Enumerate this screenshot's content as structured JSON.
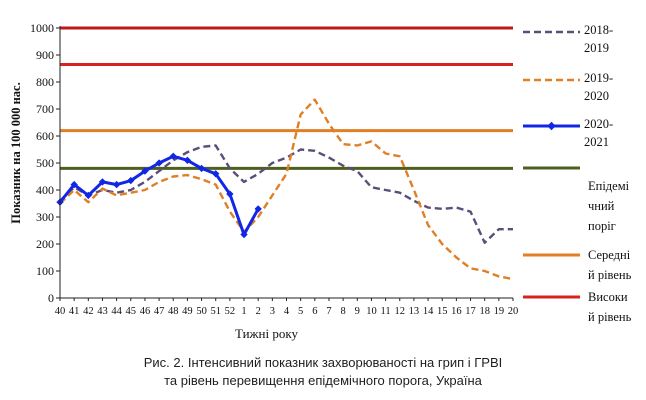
{
  "chart_data": {
    "type": "line",
    "ylabel": "Показник на 100 000 нас.",
    "xlabel": "Тижні року",
    "ylim": [
      0,
      1000
    ],
    "yticks": [
      "0",
      "100",
      "200",
      "300",
      "400",
      "500",
      "600",
      "700",
      "800",
      "900",
      "1000"
    ],
    "x_categories": [
      "40",
      "41",
      "42",
      "43",
      "44",
      "45",
      "46",
      "47",
      "48",
      "49",
      "50",
      "51",
      "52",
      "1",
      "2",
      "3",
      "4",
      "5",
      "6",
      "7",
      "8",
      "9",
      "10",
      "11",
      "12",
      "13",
      "14",
      "15",
      "16",
      "17",
      "18",
      "19",
      "20"
    ],
    "grid": false,
    "legend_position": "right",
    "series": [
      {
        "name": "2018-2019",
        "style": "dashed",
        "color": "#5b4e7a",
        "values": [
          360,
          410,
          380,
          400,
          390,
          400,
          430,
          470,
          510,
          540,
          560,
          565,
          480,
          430,
          460,
          500,
          520,
          550,
          545,
          520,
          490,
          470,
          410,
          400,
          390,
          360,
          335,
          330,
          335,
          320,
          205,
          255,
          255
        ]
      },
      {
        "name": "2019-2020",
        "style": "dashed",
        "color": "#e07f24",
        "values": [
          350,
          400,
          355,
          405,
          380,
          390,
          400,
          430,
          450,
          455,
          440,
          420,
          320,
          245,
          300,
          380,
          460,
          680,
          735,
          645,
          570,
          565,
          580,
          535,
          525,
          400,
          270,
          200,
          150,
          110,
          100,
          80,
          70
        ]
      },
      {
        "name": "2020-2021",
        "style": "solid",
        "color": "#1226e6",
        "values": [
          355,
          420,
          380,
          430,
          420,
          435,
          470,
          500,
          525,
          510,
          480,
          460,
          385,
          235,
          330
        ]
      }
    ],
    "thresholds": [
      {
        "name": "Епідемічний поріг",
        "legend_lines": [
          "Епідемі",
          "чний",
          "поріг"
        ],
        "value": 480,
        "color": "#4e5f1e"
      },
      {
        "name": "Середній рівень",
        "legend_lines": [
          "Середні",
          "й рівень"
        ],
        "value": 620,
        "color": "#e07f24"
      },
      {
        "name": "Високий рівень",
        "legend_lines": [
          "Високи",
          "й рівень"
        ],
        "value": 865,
        "color": "#d9221b"
      },
      {
        "name": "",
        "legend_lines": [],
        "value": 1000,
        "color": "#c01818"
      }
    ]
  },
  "caption": {
    "line1": "Рис. 2. Інтенсивний показник захворюваності на грип і ГРВІ",
    "line2": "та рівень перевищення епідемічного порога, Україна"
  }
}
